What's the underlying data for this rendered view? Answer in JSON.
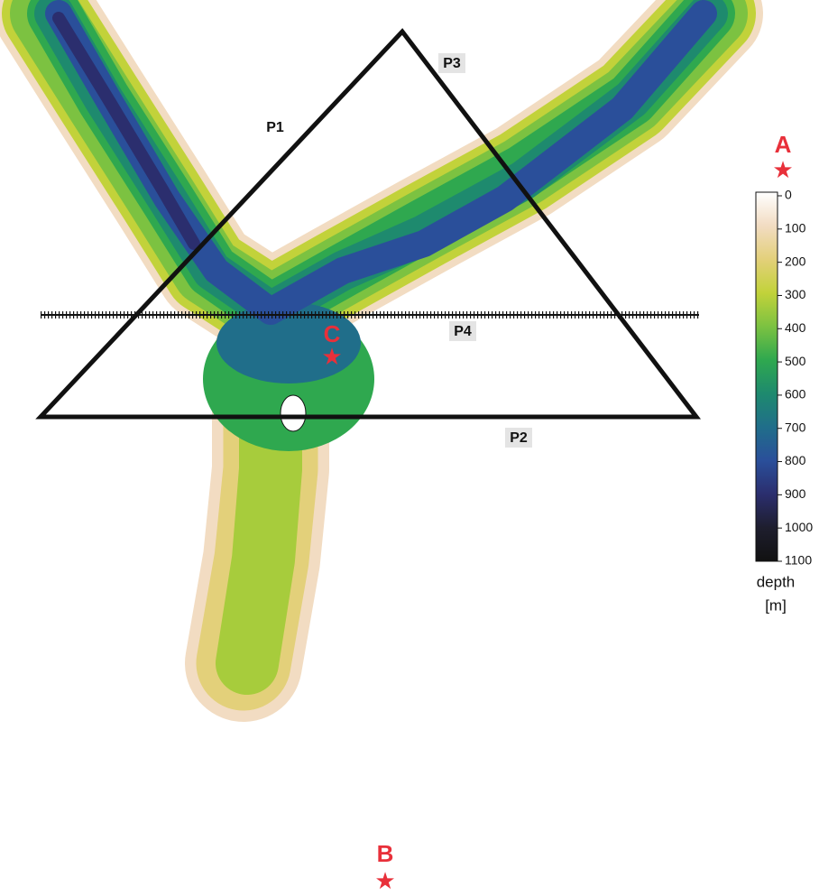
{
  "map": {
    "profiles": [
      "P1",
      "P2",
      "P3",
      "P4"
    ],
    "sites": [
      "A",
      "B",
      "C"
    ],
    "colorbar": {
      "ticks": [
        0,
        100,
        200,
        300,
        400,
        500,
        600,
        700,
        800,
        900,
        1000,
        1100
      ],
      "label": [
        "depth",
        "[m]"
      ],
      "colors": [
        "#ffffff",
        "#f2dcc2",
        "#e3d07a",
        "#c2d23a",
        "#7cc241",
        "#2fa84f",
        "#1e8a6e",
        "#206e8a",
        "#2a4f9a",
        "#2b2e6e",
        "#1e1e2e",
        "#111111"
      ]
    }
  }
}
